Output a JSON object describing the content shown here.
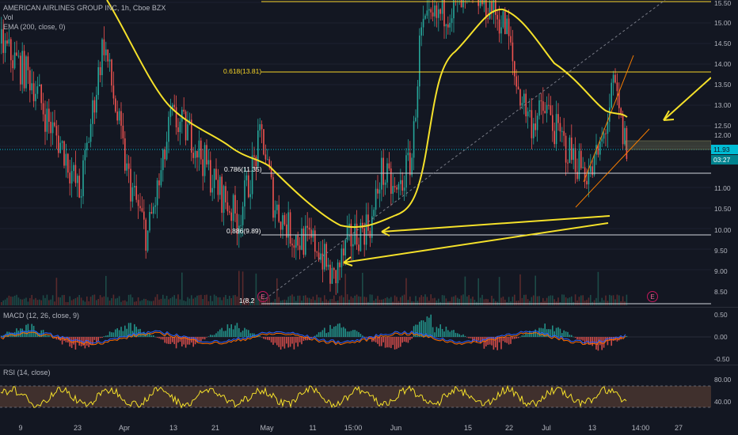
{
  "legend": {
    "symbol": "AMERICAN AIRLINES GROUP INC, 1h, Cboe BZX",
    "vol": "Vol",
    "ema": "EMA (200, close, 0)",
    "macd": "MACD (12, 26, close, 9)",
    "rsi": "RSI (14, close)"
  },
  "price_axis": [
    "15.50",
    "15.00",
    "14.50",
    "14.00",
    "13.50",
    "13.00",
    "12.50",
    "12.00",
    "11.50",
    "11.00",
    "10.50",
    "10.00",
    "9.50",
    "9.00",
    "8.50"
  ],
  "last_price": "11.93",
  "countdown": "03:27",
  "macd_axis": [
    "0.50",
    "0.00",
    "-0.50"
  ],
  "rsi_axis": [
    "80.00",
    "40.00"
  ],
  "time_axis": [
    "9",
    "23",
    "Apr",
    "13",
    "21",
    "May",
    "11",
    "15:00",
    "Jun",
    "15",
    "22",
    "Jul",
    "13",
    "14:00",
    "27"
  ],
  "fib_levels": [
    {
      "label": "0.618(13.81)",
      "color": "#f5d327"
    },
    {
      "label": "0.786(11.35)",
      "color": "#ffffff"
    },
    {
      "label": "0.886(9.89)",
      "color": "#ffffff"
    },
    {
      "label": "1(8.2",
      "color": "#ffffff"
    }
  ],
  "earnings_marker": "E",
  "colors": {
    "up": "#26a69a",
    "down": "#ef5350",
    "ema": "#f5e12a",
    "fib_gold": "#f5d327",
    "bg": "#131722"
  }
}
